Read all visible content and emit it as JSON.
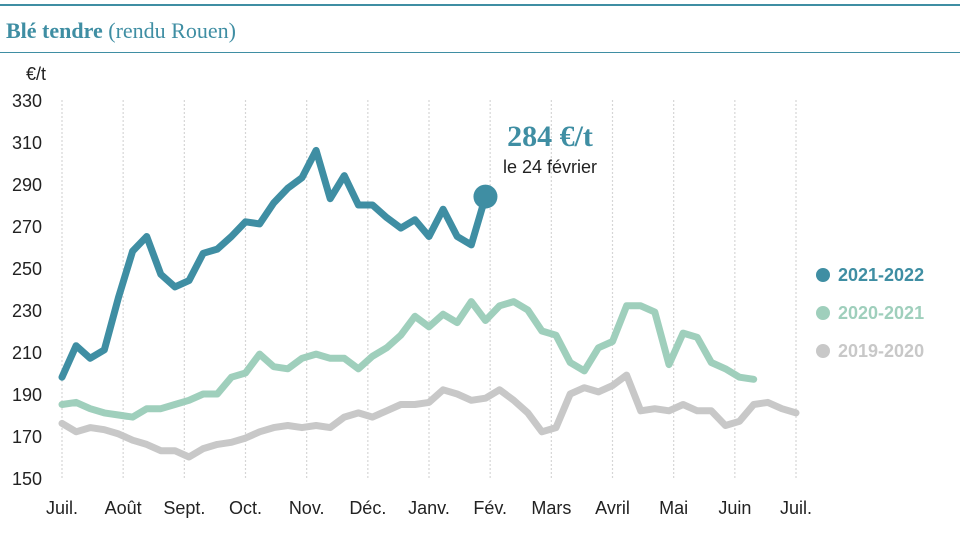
{
  "header": {
    "title": "Blé tendre",
    "subtitle": "(rendu Rouen)"
  },
  "chart_data": {
    "type": "line",
    "unit_label": "€/t",
    "ylim": [
      150,
      330
    ],
    "yticks": [
      150,
      170,
      190,
      210,
      230,
      250,
      270,
      290,
      310,
      330
    ],
    "grid": "vertical",
    "x_labels": [
      "Juil.",
      "Août",
      "Sept.",
      "Oct.",
      "Nov.",
      "Déc.",
      "Janv.",
      "Fév.",
      "Mars",
      "Avril",
      "Mai",
      "Juin",
      "Juil."
    ],
    "series": [
      {
        "name": "2021-2022",
        "color": "#3f8ea3",
        "values": [
          198,
          213,
          207,
          211,
          236,
          258,
          265,
          247,
          241,
          244,
          257,
          259,
          265,
          272,
          271,
          281,
          288,
          293,
          306,
          283,
          294,
          280,
          280,
          274,
          269,
          273,
          265,
          278,
          265,
          261,
          284
        ]
      },
      {
        "name": "2020-2021",
        "color": "#9fcfbc",
        "values": [
          185,
          186,
          183,
          181,
          180,
          179,
          183,
          183,
          185,
          187,
          190,
          190,
          198,
          200,
          209,
          203,
          202,
          207,
          209,
          207,
          207,
          202,
          208,
          212,
          218,
          227,
          222,
          228,
          224,
          234,
          225,
          232,
          234,
          230,
          220,
          218,
          205,
          201,
          212,
          215,
          232,
          232,
          229,
          204,
          219,
          217,
          205,
          202,
          198,
          197
        ]
      },
      {
        "name": "2019-2020",
        "color": "#c8c8c8",
        "values": [
          176,
          172,
          174,
          173,
          171,
          168,
          166,
          163,
          163,
          160,
          164,
          166,
          167,
          169,
          172,
          174,
          175,
          174,
          175,
          174,
          179,
          181,
          179,
          182,
          185,
          185,
          186,
          192,
          190,
          187,
          188,
          192,
          187,
          181,
          172,
          174,
          190,
          193,
          191,
          194,
          199,
          182,
          183,
          182,
          185,
          182,
          182,
          175,
          177,
          185,
          186,
          183,
          181
        ]
      }
    ],
    "annotation": {
      "value_label": "284 €/t",
      "date_label": "le 24 février",
      "series": "2021-2022",
      "value": 284
    }
  }
}
